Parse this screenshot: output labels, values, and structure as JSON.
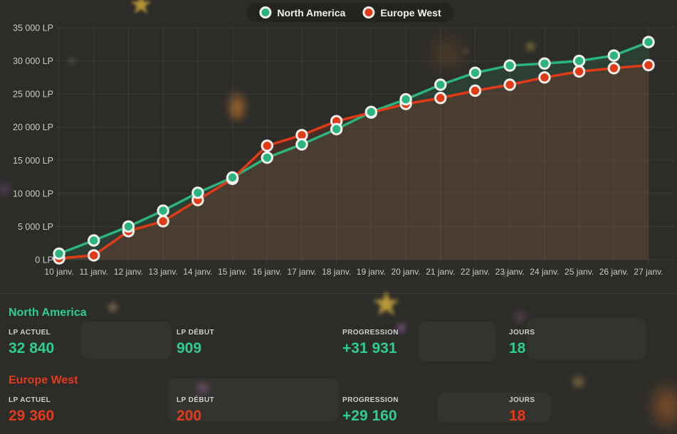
{
  "colors": {
    "green": "#2fce8d",
    "red": "#e8391b",
    "background": "#2c2c29",
    "axis_text": "#c9c9c6"
  },
  "icons": {
    "star": "★",
    "heart": "♥"
  },
  "chart_data": {
    "type": "line",
    "title": "",
    "xlabel": "",
    "ylabel": "LP",
    "grid": true,
    "legend_position": "top-center",
    "ylim": [
      0,
      35000
    ],
    "y_ticks": [
      0,
      5000,
      10000,
      15000,
      20000,
      25000,
      30000,
      35000
    ],
    "y_tick_labels": [
      "0 LP",
      "5 000 LP",
      "10 000 LP",
      "15 000 LP",
      "20 000 LP",
      "25 000 LP",
      "30 000 LP",
      "35 000 LP"
    ],
    "categories": [
      "10 janv.",
      "11 janv.",
      "12 janv.",
      "13 janv.",
      "14 janv.",
      "15 janv.",
      "16 janv.",
      "17 janv.",
      "18 janv.",
      "19 janv.",
      "20 janv.",
      "21 janv.",
      "22 janv.",
      "23 janv.",
      "24 janv.",
      "25 janv.",
      "26 janv.",
      "27 janv."
    ],
    "series": [
      {
        "name": "North America",
        "color": "#2ab57f",
        "fill": "rgba(42,181,127,0.14)",
        "values": [
          909,
          2900,
          5000,
          7400,
          10100,
          12400,
          15400,
          17400,
          19700,
          22300,
          24200,
          26400,
          28200,
          29300,
          29600,
          30000,
          30800,
          32840
        ]
      },
      {
        "name": "Europe West",
        "color": "#e23a17",
        "fill": "rgba(226,58,23,0.16)",
        "values": [
          200,
          650,
          4300,
          5800,
          9000,
          12200,
          17200,
          18800,
          20900,
          22200,
          23500,
          24400,
          25500,
          26400,
          27500,
          28400,
          28900,
          29360
        ]
      }
    ]
  },
  "stats": {
    "sections": [
      {
        "title": "North America",
        "accent": "green",
        "items": [
          {
            "label": "LP ACTUEL",
            "value": "32 840",
            "accent": "green"
          },
          {
            "label": "LP DÉBUT",
            "value": "909",
            "accent": "green"
          },
          {
            "label": "PROGRESSION",
            "value": "+31 931",
            "accent": "green"
          },
          {
            "label": "JOURS",
            "value": "18",
            "accent": "green"
          }
        ]
      },
      {
        "title": "Europe West",
        "accent": "red",
        "items": [
          {
            "label": "LP ACTUEL",
            "value": "29 360",
            "accent": "red"
          },
          {
            "label": "LP DÉBUT",
            "value": "200",
            "accent": "red"
          },
          {
            "label": "PROGRESSION",
            "value": "+29 160",
            "accent": "green"
          },
          {
            "label": "JOURS",
            "value": "18",
            "accent": "red"
          }
        ]
      }
    ]
  }
}
